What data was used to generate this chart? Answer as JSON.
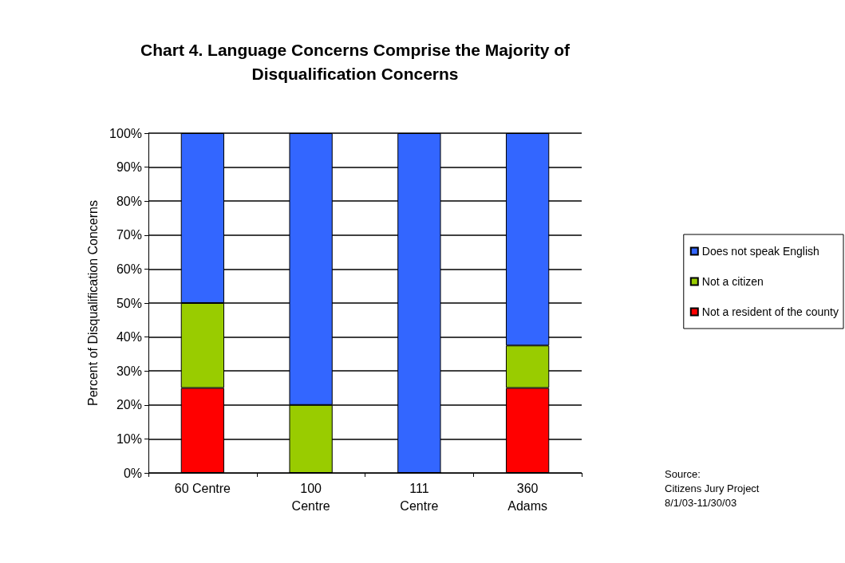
{
  "chart_data": {
    "type": "bar",
    "stacked": true,
    "title": "Chart 4. Language Concerns Comprise the Majority of\nDisqualification Concerns",
    "ylabel": "Percent of Disqualification Concerns",
    "categories": [
      "60 Centre",
      "100\nCentre",
      "111\nCentre",
      "360\nAdams"
    ],
    "series": [
      {
        "name": "Not a resident of the county",
        "color": "#ff0000",
        "values": [
          25,
          0,
          0,
          25
        ]
      },
      {
        "name": "Not a citizen",
        "color": "#99cc00",
        "values": [
          25,
          20,
          0,
          12.5
        ]
      },
      {
        "name": "Does not speak English",
        "color": "#3366ff",
        "values": [
          50,
          80,
          100,
          62.5
        ]
      }
    ],
    "ylim": [
      0,
      100
    ],
    "yticks": [
      {
        "value": 0,
        "label": "0%"
      },
      {
        "value": 10,
        "label": "10%"
      },
      {
        "value": 20,
        "label": "20%"
      },
      {
        "value": 30,
        "label": "30%"
      },
      {
        "value": 40,
        "label": "40%"
      },
      {
        "value": 50,
        "label": "50%"
      },
      {
        "value": 60,
        "label": "60%"
      },
      {
        "value": 70,
        "label": "70%"
      },
      {
        "value": 80,
        "label": "80%"
      },
      {
        "value": 90,
        "label": "90%"
      },
      {
        "value": 100,
        "label": "100%"
      }
    ],
    "grid": "y",
    "legend": "right",
    "annotations": [
      "Source:\nCitizens Jury Project\n8/1/03-11/30/03"
    ]
  }
}
